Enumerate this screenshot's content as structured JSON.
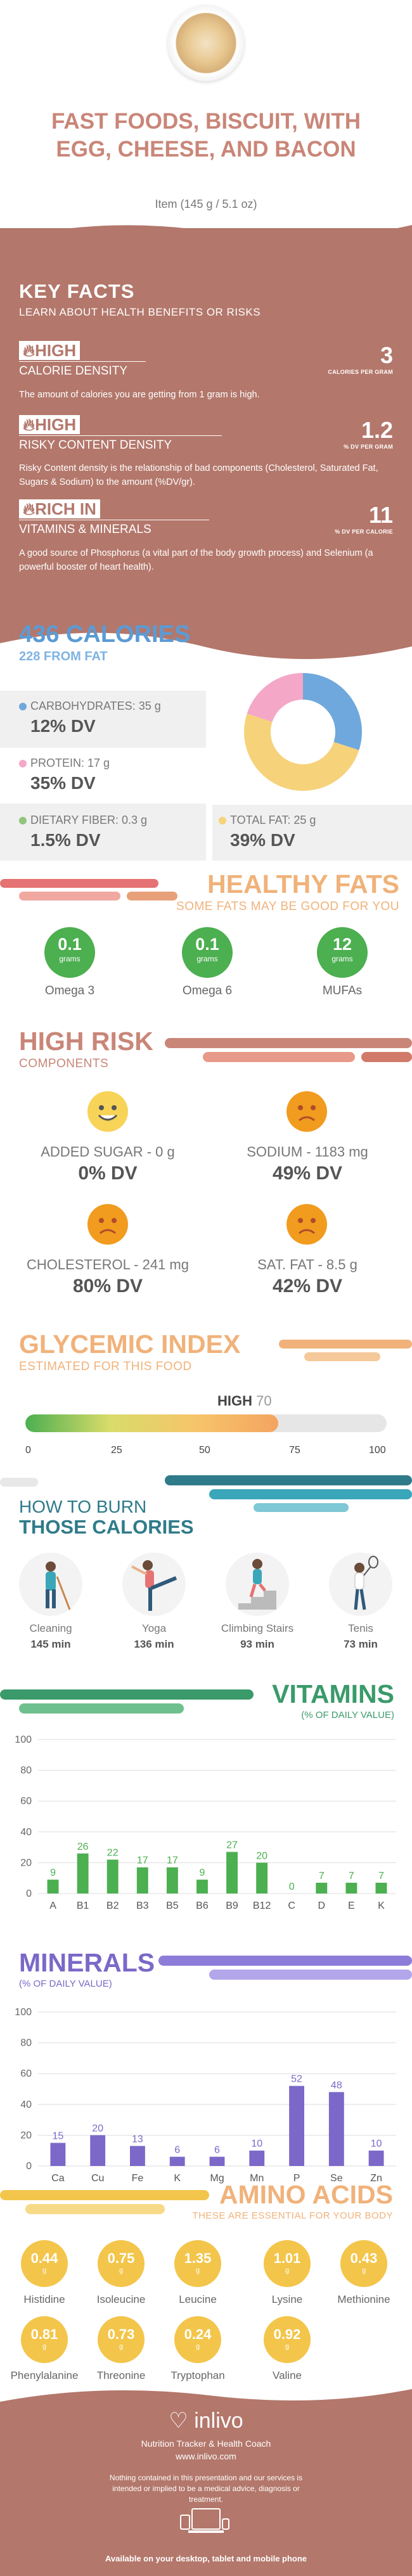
{
  "header": {
    "title": "FAST FOODS, BISCUIT, WITH EGG, CHEESE, AND BACON",
    "serving": "Item (145 g / 5.1 oz)"
  },
  "key_facts": {
    "title": "KEY FACTS",
    "subtitle": "LEARN ABOUT HEALTH BENEFITS OR RISKS",
    "facts": [
      {
        "badge": "HIGH",
        "label": "CALORIE DENSITY",
        "value": "3",
        "unit": "CALORIES PER GRAM",
        "desc": "The amount of calories you are getting from 1 gram is high."
      },
      {
        "badge": "HIGH",
        "label": "RISKY CONTENT DENSITY",
        "value": "1.2",
        "unit": "% DV PER GRAM",
        "desc": "Risky Content density is the relationship of bad components (Cholesterol, Saturated Fat, Sugars & Sodium) to the amount (%DV/gr)."
      },
      {
        "badge": "RICH  IN",
        "label": "VITAMINS & MINERALS",
        "value": "11",
        "unit": "% DV PER CALORIE",
        "desc": "A good source of Phosphorus (a vital part of the body growth process) and Selenium (a powerful booster of heart health)."
      }
    ]
  },
  "calories": {
    "title": "436 CALORIES",
    "from_fat": "228 FROM FAT",
    "nutrients": [
      {
        "label": "CARBOHYDRATES: 35 g",
        "dv": "12% DV",
        "color": "#6fa8dc",
        "fraction": 0.3
      },
      {
        "label": "PROTEIN: 17 g",
        "dv": "35% DV",
        "color": "#f4a7c7",
        "fraction": 0.2
      },
      {
        "label": "DIETARY FIBER: 0.3 g",
        "dv": "1.5% DV",
        "color": "#93c47d",
        "fraction": 0.0
      },
      {
        "label": "TOTAL FAT: 25 g",
        "dv": "39% DV",
        "color": "#f6d27a",
        "fraction": 0.5
      }
    ]
  },
  "healthy_fats": {
    "title": "HEALTHY FATS",
    "subtitle": "SOME FATS MAY BE GOOD FOR YOU",
    "items": [
      {
        "value": "0.1",
        "unit": "grams",
        "label": "Omega 3"
      },
      {
        "value": "0.1",
        "unit": "grams",
        "label": "Omega 6"
      },
      {
        "value": "12",
        "unit": "grams",
        "label": "MUFAs"
      }
    ]
  },
  "high_risk": {
    "title": "HIGH RISK",
    "subtitle": "COMPONENTS",
    "items": [
      {
        "label": "ADDED SUGAR - 0 g",
        "dv": "0% DV",
        "mood": "happy"
      },
      {
        "label": "SODIUM - 1183 mg",
        "dv": "49% DV",
        "mood": "sad"
      },
      {
        "label": "CHOLESTEROL - 241 mg",
        "dv": "80% DV",
        "mood": "sad"
      },
      {
        "label": "SAT. FAT - 8.5 g",
        "dv": "42% DV",
        "mood": "sad"
      }
    ]
  },
  "glycemic": {
    "title": "GLYCEMIC INDEX",
    "subtitle": "ESTIMATED FOR THIS FOOD",
    "level": "HIGH",
    "value": "70",
    "value_num": 70,
    "ticks": [
      "0",
      "25",
      "50",
      "75",
      "100"
    ]
  },
  "burn": {
    "title1": "HOW TO BURN",
    "title2": "THOSE CALORIES",
    "activities": [
      {
        "label": "Cleaning",
        "minutes": "145 min"
      },
      {
        "label": "Yoga",
        "minutes": "136 min"
      },
      {
        "label": "Climbing Stairs",
        "minutes": "93 min"
      },
      {
        "label": "Tenis",
        "minutes": "73 min"
      }
    ]
  },
  "vitamins": {
    "title": "VITAMINS",
    "subtitle": "(% OF DAILY VALUE)"
  },
  "minerals": {
    "title": "MINERALS",
    "subtitle": "(% OF DAILY VALUE)"
  },
  "chart_data": [
    {
      "type": "bar",
      "categories": [
        "A",
        "B1",
        "B2",
        "B3",
        "B5",
        "B6",
        "B9",
        "B12",
        "C",
        "D",
        "E",
        "K"
      ],
      "values": [
        9,
        26,
        22,
        17,
        17,
        9,
        27,
        20,
        0,
        7,
        7,
        7
      ],
      "title": "VITAMINS",
      "ylim": [
        0,
        100
      ],
      "yticks": [
        "0",
        "20",
        "40",
        "60",
        "80",
        "100"
      ],
      "color": "#4caf50"
    },
    {
      "type": "bar",
      "categories": [
        "Ca",
        "Cu",
        "Fe",
        "K",
        "Mg",
        "Mn",
        "P",
        "Se",
        "Zn"
      ],
      "values": [
        15,
        20,
        13,
        6,
        6,
        10,
        52,
        48,
        10
      ],
      "title": "MINERALS",
      "ylim": [
        0,
        100
      ],
      "yticks": [
        "0",
        "20",
        "40",
        "60",
        "80",
        "100"
      ],
      "color": "#7b68c8"
    }
  ],
  "amino": {
    "title": "AMINO ACIDS",
    "subtitle": "THESE ARE ESSENTIAL FOR YOUR BODY",
    "items": [
      {
        "value": "0.44",
        "unit": "g",
        "label": "Histidine"
      },
      {
        "value": "0.75",
        "unit": "g",
        "label": "Isoleucine"
      },
      {
        "value": "1.35",
        "unit": "g",
        "label": "Leucine"
      },
      {
        "value": "1.01",
        "unit": "g",
        "label": "Lysine"
      },
      {
        "value": "0.43",
        "unit": "g",
        "label": "Methionine"
      },
      {
        "value": "0.81",
        "unit": "g",
        "label": "Phenylalanine"
      },
      {
        "value": "0.73",
        "unit": "g",
        "label": "Threonine"
      },
      {
        "value": "0.24",
        "unit": "g",
        "label": "Tryptophan"
      },
      {
        "value": "0.92",
        "unit": "g",
        "label": "Valine"
      }
    ]
  },
  "footer": {
    "brand": "inlivo",
    "tagline": "Nutrition Tracker & Health Coach",
    "url": "www.inlivo.com",
    "disclaimer": "Nothing contained in this presentation and our services is intended or implied to be a medical advice, diagnosis or treatment.",
    "platforms": "Available on your desktop, tablet and mobile phone"
  }
}
